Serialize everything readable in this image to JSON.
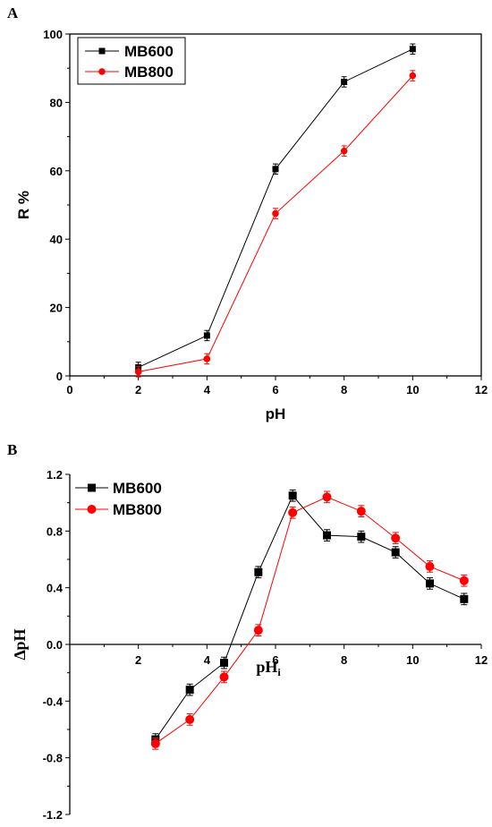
{
  "chart_data": [
    {
      "panel": "A",
      "type": "line",
      "xlabel": "pH",
      "ylabel": "R %",
      "xlim": [
        0,
        12
      ],
      "ylim": [
        0,
        100
      ],
      "xticks": [
        "0",
        "2",
        "4",
        "6",
        "8",
        "10",
        "12"
      ],
      "yticks": [
        "0",
        "20",
        "40",
        "60",
        "80",
        "100"
      ],
      "legend_position": "top-left",
      "grid": false,
      "series": [
        {
          "name": "MB600",
          "color": "#000000",
          "marker": "square",
          "x": [
            2,
            4,
            6,
            8,
            10
          ],
          "y": [
            2.5,
            11.8,
            60.5,
            86,
            95.6
          ],
          "err": [
            1.5,
            1.5,
            1.5,
            1.5,
            1.5
          ]
        },
        {
          "name": "MB800",
          "color": "#ff0000",
          "marker": "circle",
          "x": [
            2,
            4,
            6,
            8,
            10
          ],
          "y": [
            1.2,
            5,
            47.5,
            65.8,
            87.8
          ],
          "err": [
            1.5,
            1.5,
            1.5,
            1.5,
            1.5
          ]
        }
      ]
    },
    {
      "panel": "B",
      "type": "line",
      "xlabel": "pH",
      "xlabel_sub": "i",
      "ylabel": "∆pH",
      "xlim": [
        0,
        12
      ],
      "ylim": [
        -1.2,
        1.2
      ],
      "xticks": [
        "2",
        "4",
        "6",
        "8",
        "10",
        "12"
      ],
      "yticks": [
        "1.2",
        "0.8",
        "0.4",
        "0.0",
        "-0.4",
        "-0.8",
        "-1.2"
      ],
      "legend_position": "top-left",
      "grid": false,
      "series": [
        {
          "name": "MB600",
          "color": "#000000",
          "marker": "square",
          "x": [
            2.5,
            3.5,
            4.5,
            5.5,
            6.5,
            7.5,
            8.5,
            9.5,
            10.5,
            11.5
          ],
          "y": [
            -0.67,
            -0.32,
            -0.13,
            0.51,
            1.05,
            0.77,
            0.76,
            0.65,
            0.43,
            0.32
          ],
          "err": [
            0.04,
            0.04,
            0.04,
            0.04,
            0.04,
            0.04,
            0.04,
            0.04,
            0.04,
            0.04
          ]
        },
        {
          "name": "MB800",
          "color": "#ff0000",
          "marker": "circle",
          "x": [
            2.5,
            3.5,
            4.5,
            5.5,
            6.5,
            7.5,
            8.5,
            9.5,
            10.5,
            11.5
          ],
          "y": [
            -0.7,
            -0.53,
            -0.23,
            0.1,
            0.93,
            1.04,
            0.94,
            0.75,
            0.55,
            0.45
          ],
          "err": [
            0.04,
            0.04,
            0.04,
            0.04,
            0.04,
            0.04,
            0.04,
            0.04,
            0.04,
            0.04
          ]
        }
      ]
    }
  ]
}
